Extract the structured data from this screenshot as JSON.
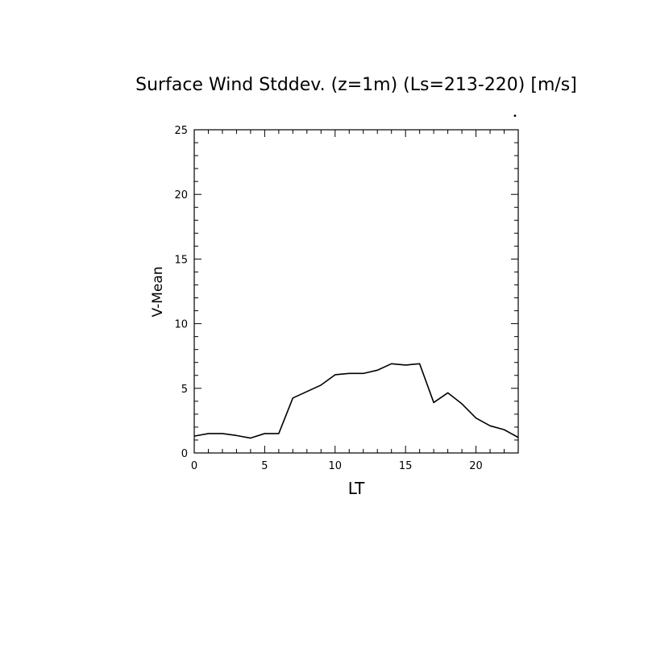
{
  "chart_data": {
    "type": "line",
    "title": "Surface Wind Stddev. (z=1m) (Ls=213-220) [m/s]",
    "xlabel": "LT",
    "ylabel": "V-Mean",
    "xlim": [
      0,
      23
    ],
    "ylim": [
      0,
      25
    ],
    "xticks": [
      0,
      5,
      10,
      15,
      20
    ],
    "yticks": [
      0,
      5,
      10,
      15,
      20,
      25
    ],
    "grid": false,
    "series": [
      {
        "x": [
          0,
          1,
          2,
          3,
          4,
          5,
          6,
          7,
          8,
          9,
          10,
          11,
          12,
          13,
          14,
          15,
          16,
          17,
          18,
          19,
          20,
          21,
          22,
          23
        ],
        "values": [
          1.3,
          1.5,
          1.5,
          1.35,
          1.15,
          1.5,
          1.5,
          4.25,
          4.75,
          5.25,
          6.05,
          6.15,
          6.15,
          6.4,
          6.9,
          6.8,
          6.9,
          3.9,
          4.65,
          3.8,
          2.7,
          2.1,
          1.8,
          1.2
        ],
        "color": "#000000"
      }
    ],
    "marker_glyph": "•"
  }
}
